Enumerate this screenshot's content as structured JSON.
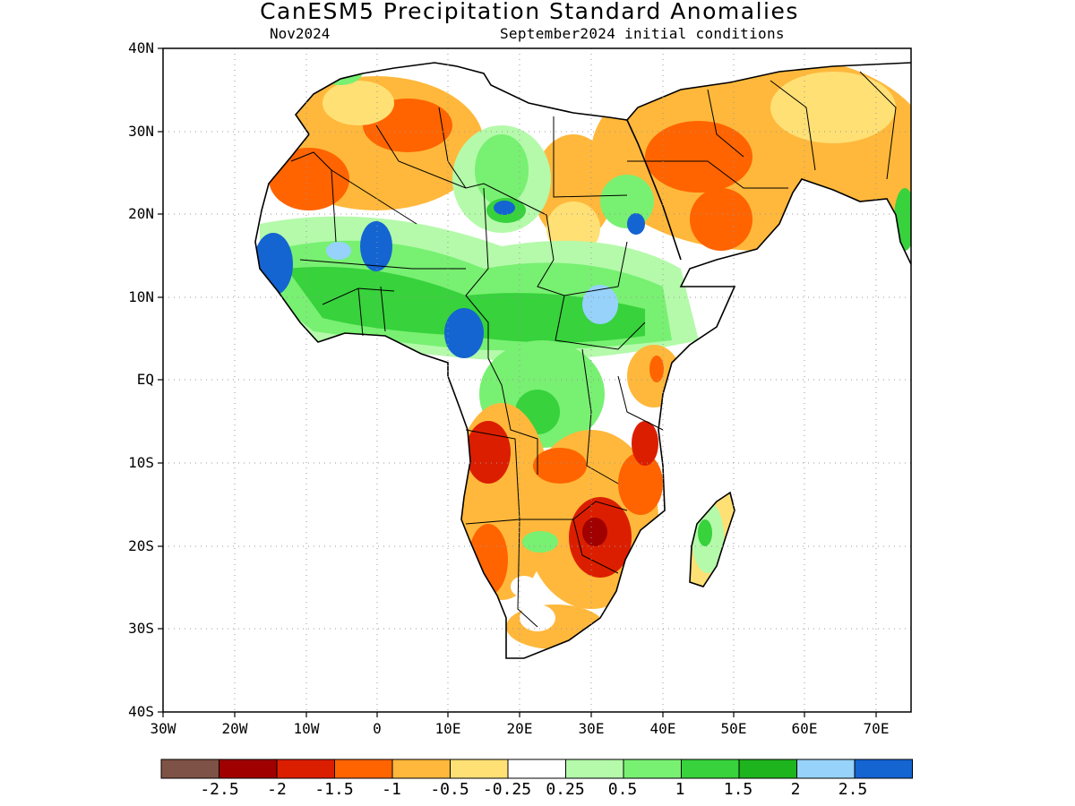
{
  "title": "CanESM5 Precipitation Standard Anomalies",
  "subtitle_left": "Nov2024",
  "subtitle_right": "September2024 initial conditions",
  "lat_labels": [
    "40N",
    "30N",
    "20N",
    "10N",
    "EQ",
    "10S",
    "20S",
    "30S",
    "40S"
  ],
  "lon_labels": [
    "30W",
    "20W",
    "10W",
    "0",
    "10E",
    "20E",
    "30E",
    "40E",
    "50E",
    "60E",
    "70E"
  ],
  "colorbar": {
    "colors": [
      "#7f5247",
      "#a00000",
      "#dc1e00",
      "#ff6400",
      "#ffb83b",
      "#ffe075",
      "#ffffff",
      "#b4faaa",
      "#78f072",
      "#37d23c",
      "#1eb41e",
      "#96d2fa",
      "#1464d2"
    ],
    "labels": [
      "-2.5",
      "-2",
      "-1.5",
      "-1",
      "-0.5",
      "-0.25",
      "0.25",
      "0.5",
      "1",
      "1.5",
      "2",
      "2.5"
    ]
  },
  "map_colors": {
    "dry_light": "#ffe075",
    "dry": "#ffb83b",
    "dry_strong": "#ff6400",
    "dry_vstrong": "#dc1e00",
    "dry_extreme": "#a00000",
    "wet_light": "#b4faaa",
    "wet": "#78f072",
    "wet_strong": "#37d23c",
    "wet_vstrong": "#1eb41e",
    "wet_high": "#96d2fa",
    "wet_extreme": "#1464d2"
  }
}
